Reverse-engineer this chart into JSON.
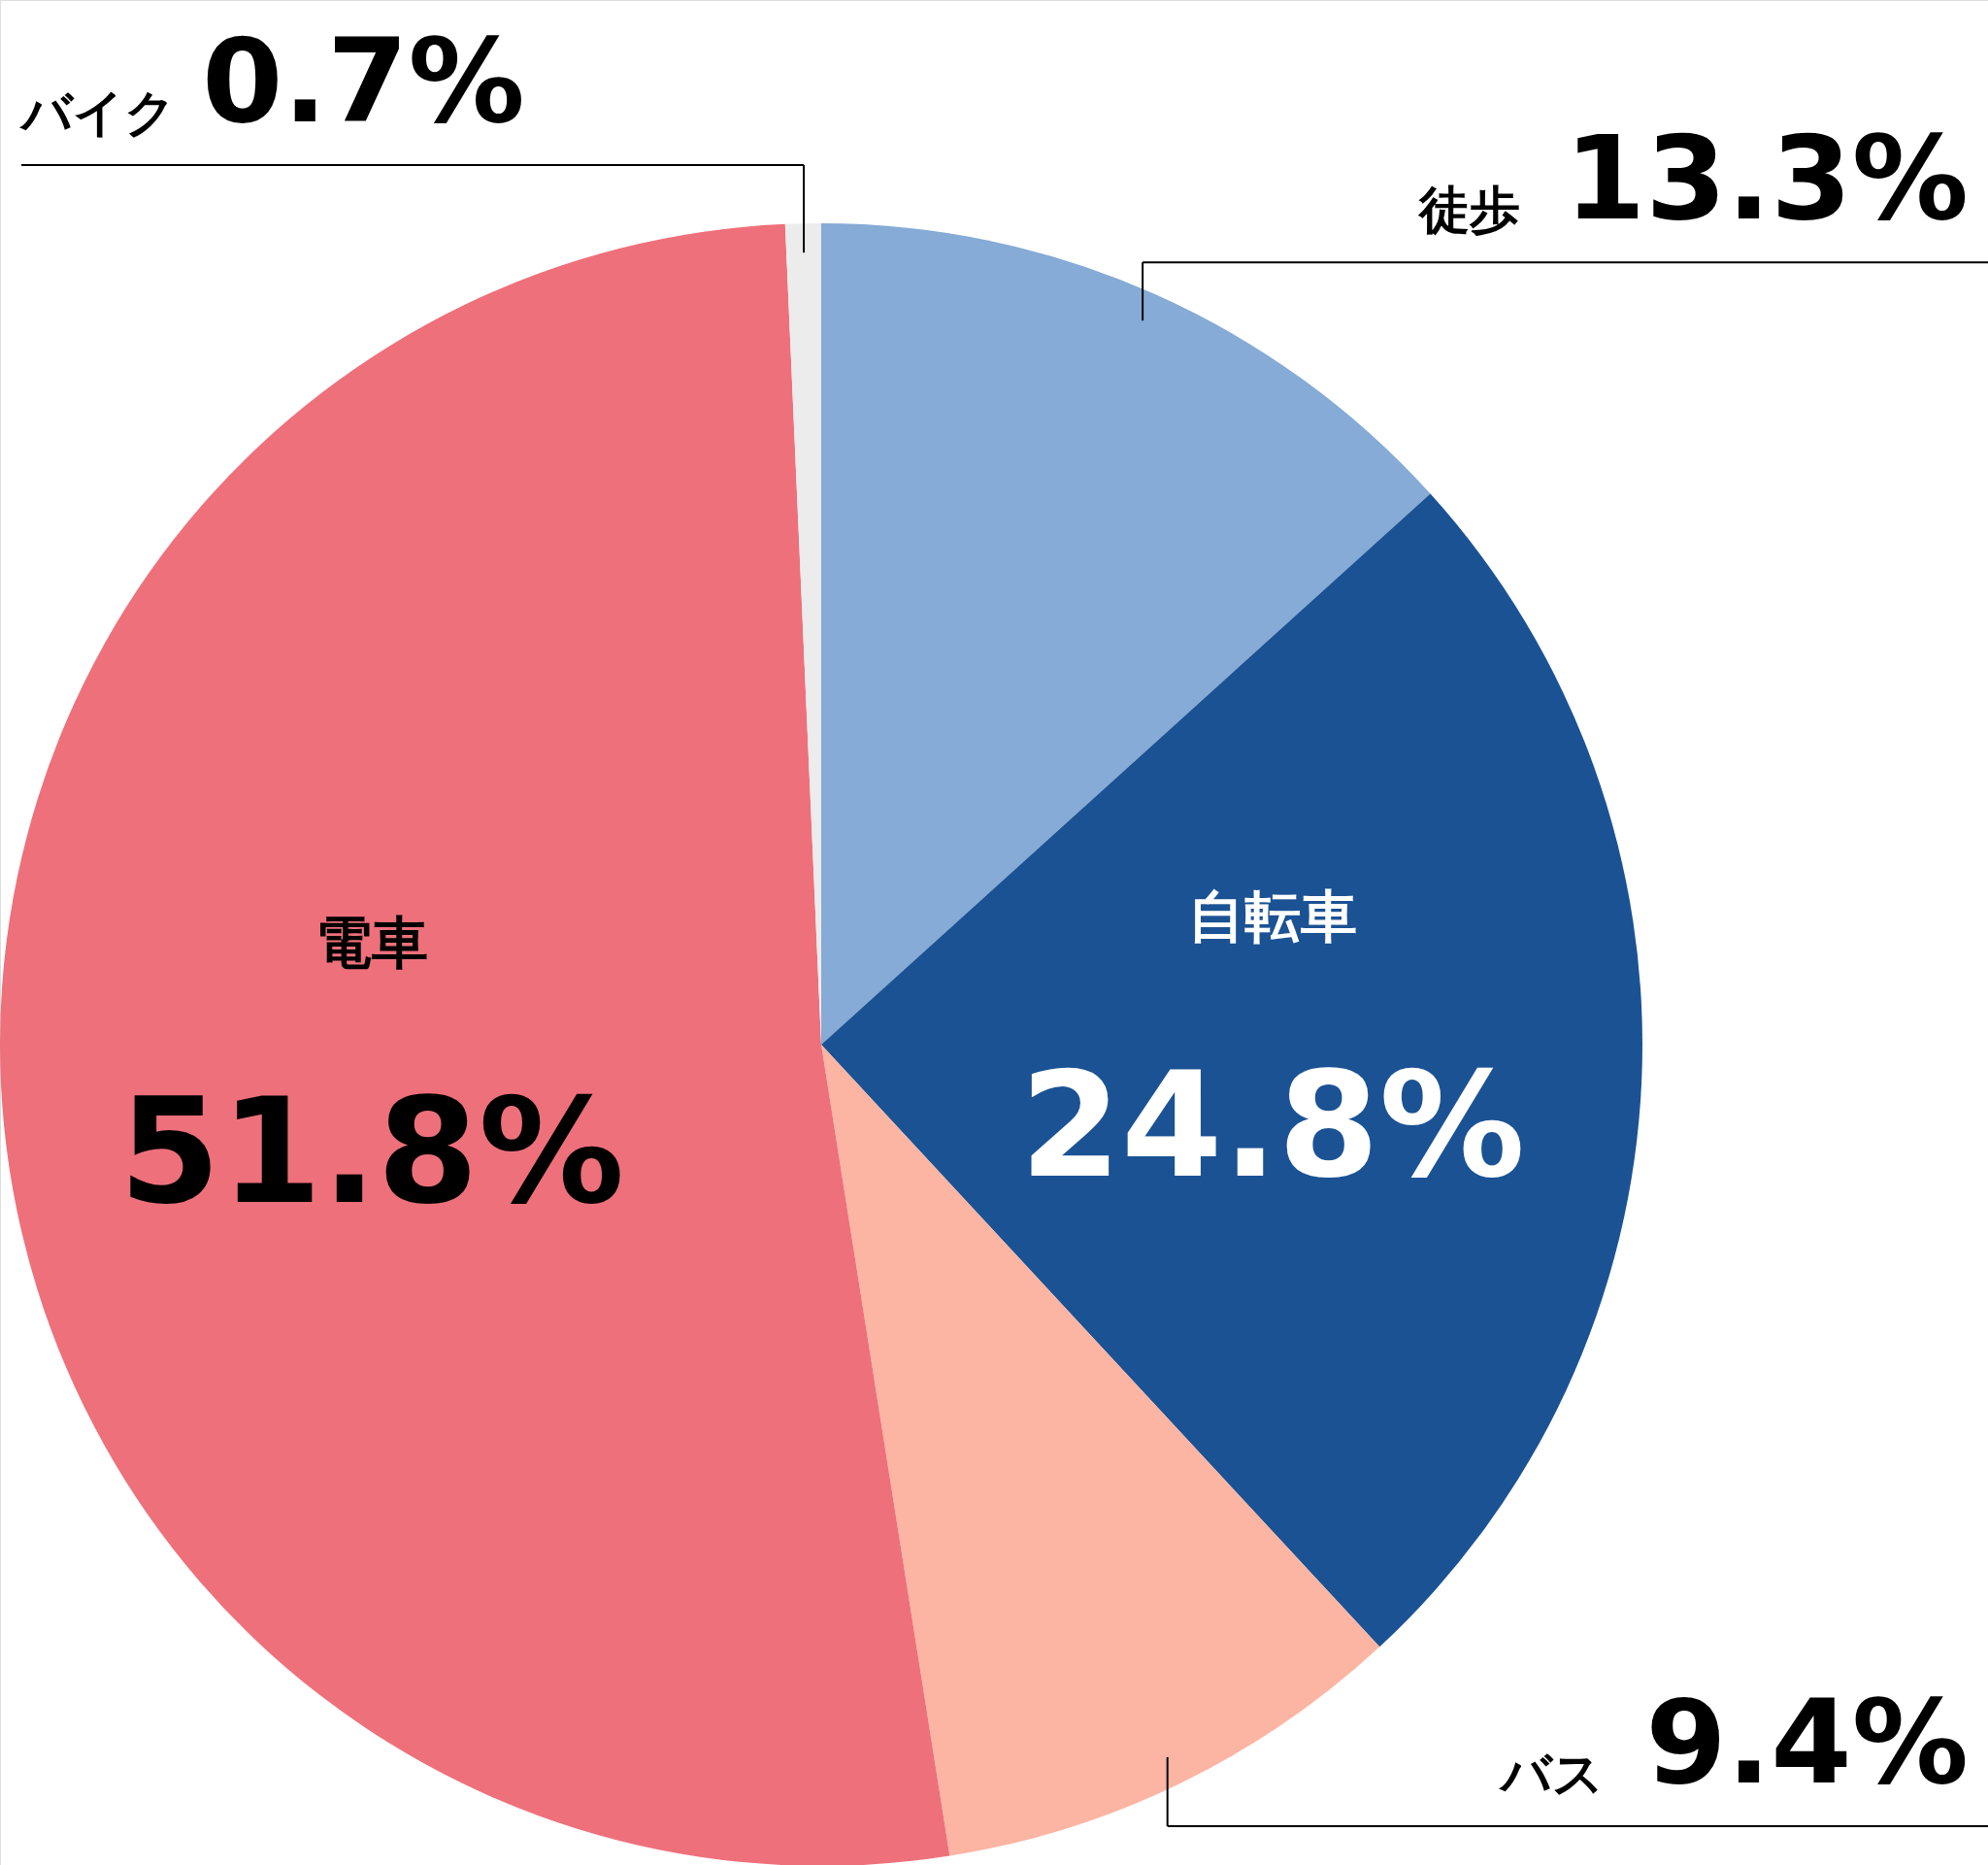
{
  "chart_data": {
    "type": "pie",
    "categories": [
      "徒歩",
      "自転車",
      "バス",
      "電車",
      "バイク"
    ],
    "values": [
      13.3,
      24.8,
      9.4,
      51.8,
      0.7
    ],
    "colors": [
      "#85abd6",
      "#1b5294",
      "#fbb5a2",
      "#ee707b",
      "#ececec"
    ],
    "value_labels": [
      "13.3%",
      "24.8%",
      "9.4%",
      "51.8%",
      "0.7%"
    ]
  }
}
